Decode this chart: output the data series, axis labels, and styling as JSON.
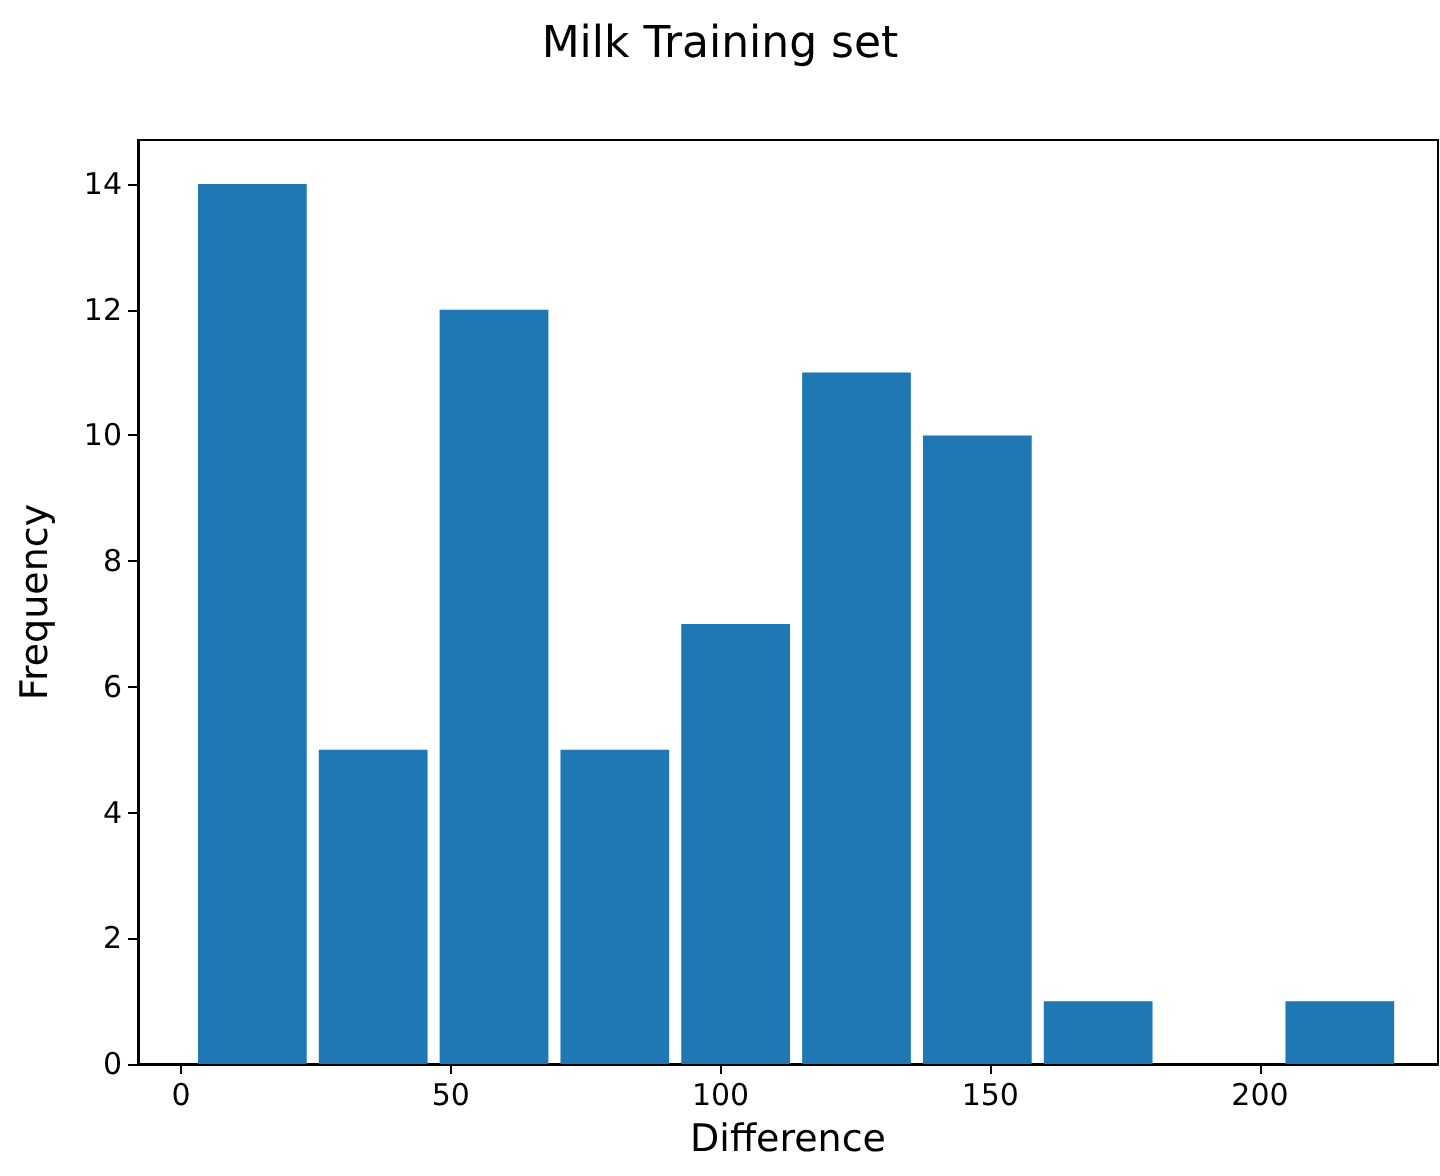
{
  "chart_data": {
    "type": "histogram",
    "title": "Milk Training set",
    "xlabel": "Difference",
    "ylabel": "Frequency",
    "bins": [
      2,
      24.4,
      46.8,
      69.2,
      91.6,
      114,
      136.4,
      158.8,
      181.2,
      203.6,
      226
    ],
    "values": [
      14,
      5,
      12,
      5,
      7,
      11,
      10,
      1,
      0,
      1
    ],
    "color": "#1f77b4",
    "xlim": [
      -8,
      233
    ],
    "xticks": [
      0,
      50,
      100,
      150,
      200
    ],
    "ylim": [
      0,
      14.7
    ],
    "yticks": [
      0,
      2,
      4,
      6,
      8,
      10,
      12,
      14
    ],
    "grid": false
  }
}
